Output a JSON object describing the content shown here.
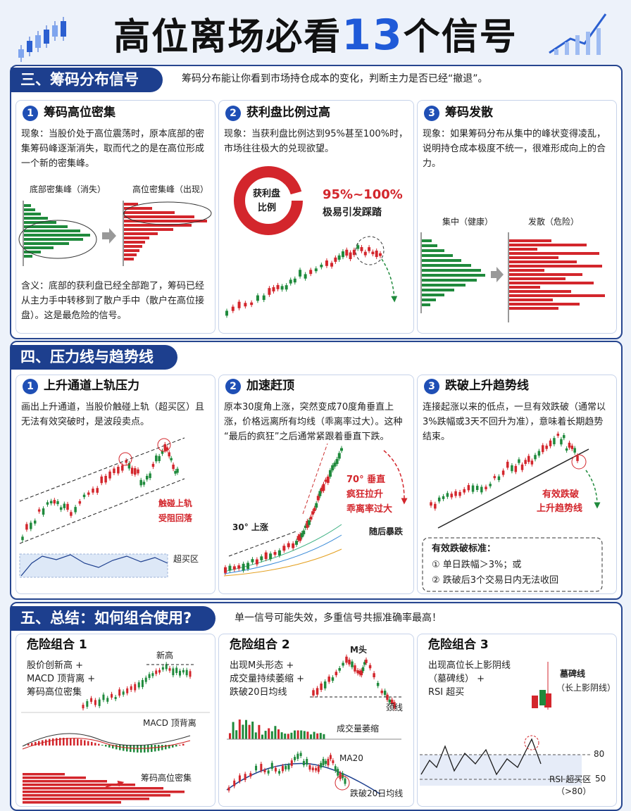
{
  "header": {
    "title_parts": [
      "高位离场必看",
      "13",
      "个信号"
    ]
  },
  "sections": [
    {
      "label": "三、筹码分布信号",
      "intro": "筹码分布能让你看到市场持仓成本的变化，判断主力是否已经“撤退”。",
      "cards": [
        {
          "number": "1",
          "title": "筹码高位密集",
          "text": "现象：当股价处于高位震荡时，原本底部的密集筹码峰逐渐消失，取而代之的是在高位形成一个新的密集峰。",
          "labels": [
            "底部密集峰（消失）",
            "高位密集峰（出现）"
          ],
          "note": "含义：底部的获利盘已经全部跑了，筹码已经从主力手中转移到了散户手中（散户在高位接盘）。这是最危险的信号。"
        },
        {
          "number": "2",
          "title": "获利盘比例过高",
          "text": "现象：当获利盘比例达到95%甚至100%时，市场往往极大的兑现欲望。",
          "labels": [
            "获利盘",
            "比例",
            "95%~100%",
            "极易引发踩踏"
          ]
        },
        {
          "number": "3",
          "title": "筹码发散",
          "text": "现象：如果筹码分布从集中的峰状变得凌乱，说明持仓成本极度不统一，很难形成向上的合力。",
          "labels": [
            "集中（健康）",
            "发散（危险）"
          ]
        }
      ]
    },
    {
      "label": "四、压力线与趋势线",
      "cards": [
        {
          "number": "1",
          "title": "上升通道上轨压力",
          "text": "画出上升通道，当股价触碰上轨（超买区）且无法有效突破时，是波段卖点。",
          "labels": [
            "触碰上轨",
            "受阻回落",
            "超买区"
          ]
        },
        {
          "number": "2",
          "title": "加速赶顶",
          "text": "原本30度角上涨，突然变成70度角垂直上涨，价格远离所有均线（乖离率过大）。这种“最后的疯狂”之后通常紧跟着垂直下跌。",
          "labels": [
            "70° 垂直",
            "疯狂拉升",
            "乖离率过大",
            "随后暴跌",
            "30° 上涨"
          ]
        },
        {
          "number": "3",
          "title": "跌破上升趋势线",
          "text": "连接起涨以来的低点，一旦有效跌破（通常以3%跌幅或3天不回升为准），意味着长期趋势结束。",
          "labels": [
            "有效跌破",
            "上升趋势线"
          ],
          "box_title": "有效跌破标准：",
          "box_items": [
            "① 单日跌幅＞3%；或",
            "② 跌破后3个交易日内无法收回"
          ]
        }
      ]
    },
    {
      "label": "五、总结：如何组合使用?",
      "intro": "单一信号可能失效，多重信号共振准确率最高！",
      "cards": [
        {
          "title": "危险组合 1",
          "lines": [
            "股价创新高 +",
            "MACD 顶背离 +",
            "筹码高位密集"
          ],
          "labels": [
            "新高",
            "MACD 顶背离",
            "筹码高位密集"
          ]
        },
        {
          "title": "危险组合 2",
          "lines": [
            "出现M头形态 +",
            "成交量持续萎缩 +",
            "跌破20日均线"
          ],
          "labels": [
            "M头",
            "颈线",
            "成交量萎缩",
            "MA20",
            "跌破20日均线"
          ]
        },
        {
          "title": "危险组合 3",
          "lines": [
            "出现高位长上影阴线",
            "（墓碑线） +",
            "RSI 超买"
          ],
          "labels": [
            "墓碑线",
            "（长上影阴线）",
            "80",
            "50",
            "RSI 超买区",
            "（>80）"
          ]
        }
      ]
    }
  ]
}
